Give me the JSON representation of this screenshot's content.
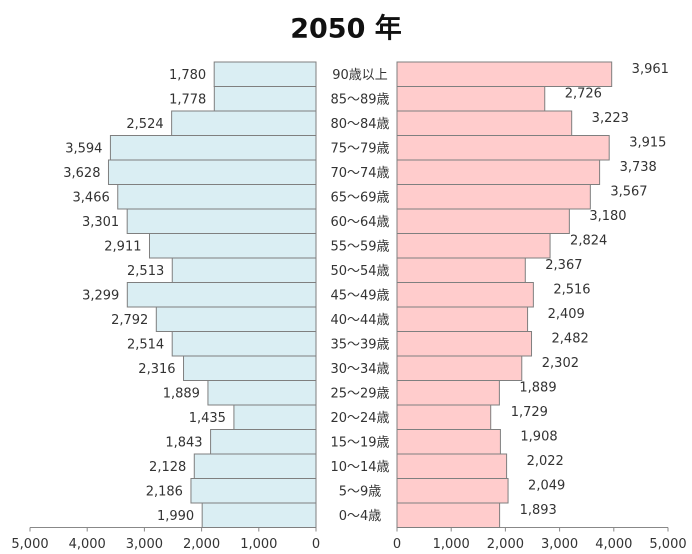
{
  "chart_data": {
    "type": "pyramid",
    "title": "2050 年",
    "categories": [
      "90歳以上",
      "85～89歳",
      "80～84歳",
      "75～79歳",
      "70～74歳",
      "65～69歳",
      "60～64歳",
      "55～59歳",
      "50～54歳",
      "45～49歳",
      "40～44歳",
      "35～39歳",
      "30～34歳",
      "25～29歳",
      "20～24歳",
      "15～19歳",
      "10～14歳",
      "5～9歳",
      "0～4歳"
    ],
    "series": [
      {
        "color": "#daeef3",
        "side": "left",
        "values": [
          1780,
          1778,
          2524,
          3594,
          3628,
          3466,
          3301,
          2911,
          2513,
          3299,
          2792,
          2514,
          2316,
          1889,
          1435,
          1843,
          2128,
          2186,
          1990
        ],
        "value_labels": [
          "1,780",
          "1,778",
          "2,524",
          "3,594",
          "3,628",
          "3,466",
          "3,301",
          "2,911",
          "2,513",
          "3,299",
          "2,792",
          "2,514",
          "2,316",
          "1,889",
          "1,435",
          "1,843",
          "2,128",
          "2,186",
          "1,990"
        ]
      },
      {
        "color": "#ffcccc",
        "side": "right",
        "values": [
          3961,
          2726,
          3223,
          3915,
          3738,
          3567,
          3180,
          2824,
          2367,
          2516,
          2409,
          2482,
          2302,
          1889,
          1729,
          1908,
          2022,
          2049,
          1893
        ],
        "value_labels": [
          "3,961",
          "2,726",
          "3,223",
          "3,915",
          "3,738",
          "3,567",
          "3,180",
          "2,824",
          "2,367",
          "2,516",
          "2,409",
          "2,482",
          "2,302",
          "1,889",
          "1,729",
          "1,908",
          "2,022",
          "2,049",
          "1,893"
        ]
      }
    ],
    "xlim": [
      0,
      5000
    ],
    "xticks": [
      0,
      {
        "value": 1000,
        "label": "1,000"
      },
      {
        "value": 2000,
        "label": "2,000"
      },
      {
        "value": 3000,
        "label": "3,000"
      },
      {
        "value": 4000,
        "label": "4,000"
      },
      {
        "value": 5000,
        "label": "5,000"
      }
    ]
  }
}
